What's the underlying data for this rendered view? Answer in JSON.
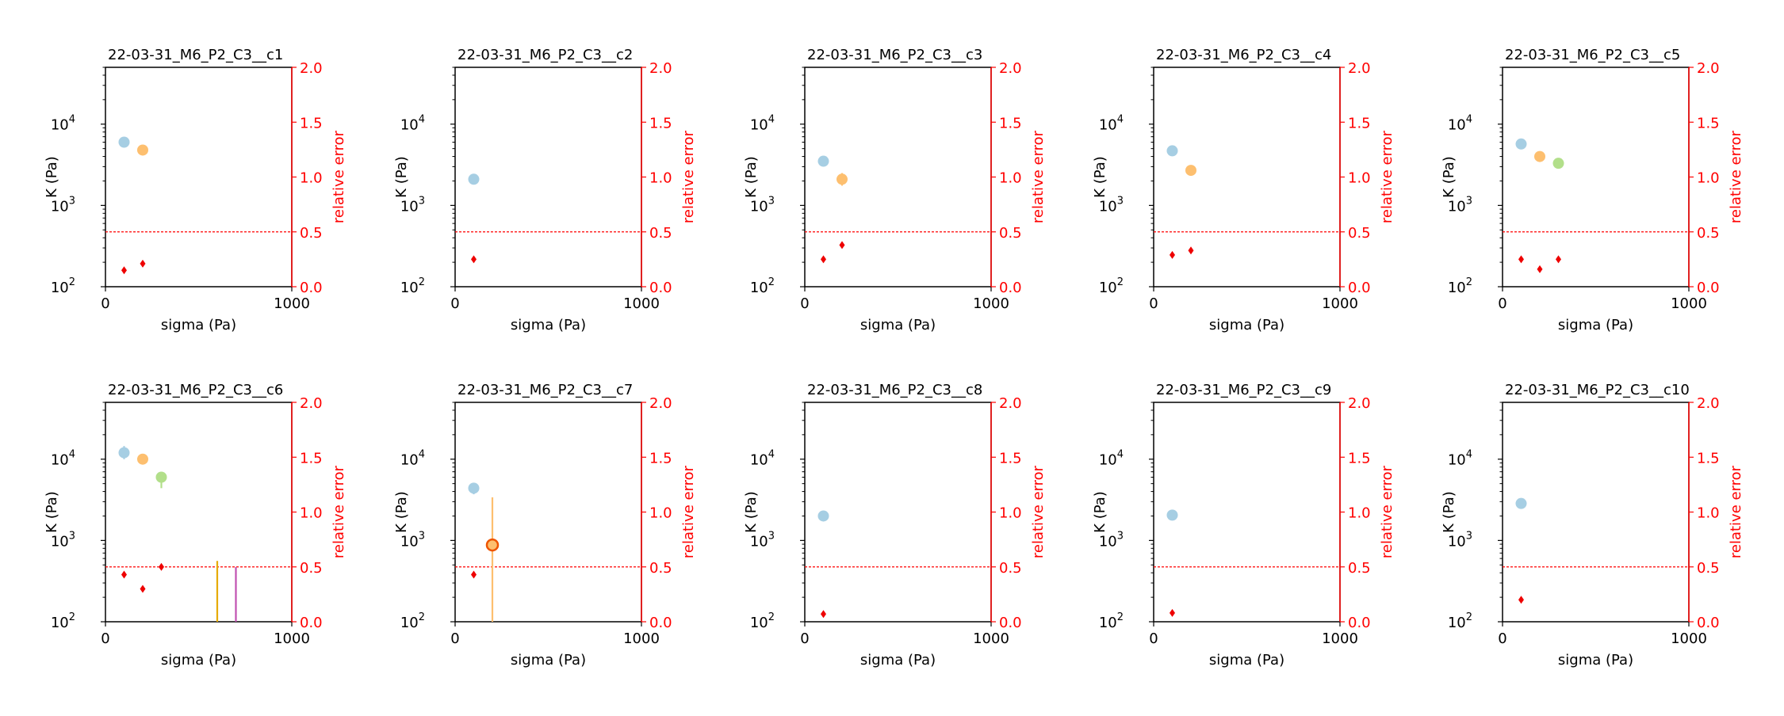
{
  "figure": {
    "colors": {
      "axis": "#000000",
      "secondary_axis": "#ff0000",
      "threshold_line": "#ff0000",
      "error_marker": "#ee0000"
    },
    "series_colors": [
      "#a6cee3",
      "#fdbf6f",
      "#b2df8a",
      "#e6ab02",
      "#c051b0"
    ]
  },
  "chart_data": [
    {
      "type": "scatter",
      "title": "22-03-31_M6_P2_C3__c1",
      "xlabel": "sigma (Pa)",
      "ylabel": "K (Pa)",
      "y2label": "relative error",
      "xlim": [
        0,
        1000
      ],
      "xticks": [
        "0",
        "1000"
      ],
      "ylim": [
        100,
        50000
      ],
      "yscale": "log",
      "yticks": [
        "10",
        "10",
        "10"
      ],
      "ytick_exponents": [
        "2",
        "3",
        "4"
      ],
      "y2lim": [
        0,
        2
      ],
      "y2ticks": [
        "0.0",
        "0.5",
        "1.0",
        "1.5",
        "2.0"
      ],
      "threshold": 0.5,
      "points": [
        {
          "x": 100,
          "y": 6000,
          "color": "#a6cee3"
        },
        {
          "x": 200,
          "y": 4800,
          "color": "#fdbf6f"
        }
      ],
      "relative_error": [
        {
          "x": 100,
          "y": 0.15
        },
        {
          "x": 200,
          "y": 0.21
        }
      ],
      "vlines": []
    },
    {
      "type": "scatter",
      "title": "22-03-31_M6_P2_C3__c2",
      "xlabel": "sigma (Pa)",
      "ylabel": "K (Pa)",
      "y2label": "relative error",
      "xlim": [
        0,
        1000
      ],
      "xticks": [
        "0",
        "1000"
      ],
      "ylim": [
        100,
        50000
      ],
      "yscale": "log",
      "yticks": [
        "10",
        "10",
        "10"
      ],
      "ytick_exponents": [
        "2",
        "3",
        "4"
      ],
      "y2lim": [
        0,
        2
      ],
      "y2ticks": [
        "0.0",
        "0.5",
        "1.0",
        "1.5",
        "2.0"
      ],
      "threshold": 0.5,
      "points": [
        {
          "x": 100,
          "y": 2100,
          "color": "#a6cee3"
        }
      ],
      "relative_error": [
        {
          "x": 100,
          "y": 0.25
        }
      ],
      "vlines": []
    },
    {
      "type": "scatter",
      "title": "22-03-31_M6_P2_C3__c3",
      "xlabel": "sigma (Pa)",
      "ylabel": "K (Pa)",
      "y2label": "relative error",
      "xlim": [
        0,
        1000
      ],
      "xticks": [
        "0",
        "1000"
      ],
      "ylim": [
        100,
        50000
      ],
      "yscale": "log",
      "yticks": [
        "10",
        "10",
        "10"
      ],
      "ytick_exponents": [
        "2",
        "3",
        "4"
      ],
      "y2lim": [
        0,
        2
      ],
      "y2ticks": [
        "0.0",
        "0.5",
        "1.0",
        "1.5",
        "2.0"
      ],
      "threshold": 0.5,
      "points": [
        {
          "x": 100,
          "y": 3500,
          "color": "#a6cee3"
        },
        {
          "x": 200,
          "y": 2100,
          "color": "#fdbf6f",
          "err_low": 1750,
          "err_high": 2500
        }
      ],
      "relative_error": [
        {
          "x": 100,
          "y": 0.25
        },
        {
          "x": 200,
          "y": 0.38
        }
      ],
      "vlines": []
    },
    {
      "type": "scatter",
      "title": "22-03-31_M6_P2_C3__c4",
      "xlabel": "sigma (Pa)",
      "ylabel": "K (Pa)",
      "y2label": "relative error",
      "xlim": [
        0,
        1000
      ],
      "xticks": [
        "0",
        "1000"
      ],
      "ylim": [
        100,
        50000
      ],
      "yscale": "log",
      "yticks": [
        "10",
        "10",
        "10"
      ],
      "ytick_exponents": [
        "2",
        "3",
        "4"
      ],
      "y2lim": [
        0,
        2
      ],
      "y2ticks": [
        "0.0",
        "0.5",
        "1.0",
        "1.5",
        "2.0"
      ],
      "threshold": 0.5,
      "points": [
        {
          "x": 100,
          "y": 4700,
          "color": "#a6cee3"
        },
        {
          "x": 200,
          "y": 2700,
          "color": "#fdbf6f"
        }
      ],
      "relative_error": [
        {
          "x": 100,
          "y": 0.29
        },
        {
          "x": 200,
          "y": 0.33
        }
      ],
      "vlines": []
    },
    {
      "type": "scatter",
      "title": "22-03-31_M6_P2_C3__c5",
      "xlabel": "sigma (Pa)",
      "ylabel": "K (Pa)",
      "y2label": "relative error",
      "xlim": [
        0,
        1000
      ],
      "xticks": [
        "0",
        "1000"
      ],
      "ylim": [
        100,
        50000
      ],
      "yscale": "log",
      "yticks": [
        "10",
        "10",
        "10"
      ],
      "ytick_exponents": [
        "2",
        "3",
        "4"
      ],
      "y2lim": [
        0,
        2
      ],
      "y2ticks": [
        "0.0",
        "0.5",
        "1.0",
        "1.5",
        "2.0"
      ],
      "threshold": 0.5,
      "points": [
        {
          "x": 100,
          "y": 5700,
          "color": "#a6cee3"
        },
        {
          "x": 200,
          "y": 4000,
          "color": "#fdbf6f"
        },
        {
          "x": 300,
          "y": 3300,
          "color": "#b2df8a"
        }
      ],
      "relative_error": [
        {
          "x": 100,
          "y": 0.25
        },
        {
          "x": 200,
          "y": 0.16
        },
        {
          "x": 300,
          "y": 0.25
        }
      ],
      "vlines": []
    },
    {
      "type": "scatter",
      "title": "22-03-31_M6_P2_C3__c6",
      "xlabel": "sigma (Pa)",
      "ylabel": "K (Pa)",
      "y2label": "relative error",
      "xlim": [
        0,
        1000
      ],
      "xticks": [
        "0",
        "1000"
      ],
      "ylim": [
        100,
        50000
      ],
      "yscale": "log",
      "yticks": [
        "10",
        "10",
        "10"
      ],
      "ytick_exponents": [
        "2",
        "3",
        "4"
      ],
      "y2lim": [
        0,
        2
      ],
      "y2ticks": [
        "0.0",
        "0.5",
        "1.0",
        "1.5",
        "2.0"
      ],
      "threshold": 0.5,
      "points": [
        {
          "x": 100,
          "y": 12000,
          "color": "#a6cee3",
          "err_low": 10000,
          "err_high": 14500
        },
        {
          "x": 200,
          "y": 10000,
          "color": "#fdbf6f"
        },
        {
          "x": 300,
          "y": 6000,
          "color": "#b2df8a",
          "err_low": 4400,
          "err_high": 7000
        }
      ],
      "relative_error": [
        {
          "x": 100,
          "y": 0.43
        },
        {
          "x": 200,
          "y": 0.3
        },
        {
          "x": 300,
          "y": 0.5
        }
      ],
      "vlines": [
        {
          "x": 600,
          "y_low": 100,
          "y_high": 560,
          "color": "#e6ab02"
        },
        {
          "x": 700,
          "y_low": 100,
          "y_high": 470,
          "color": "#c051b0"
        }
      ]
    },
    {
      "type": "scatter",
      "title": "22-03-31_M6_P2_C3__c7",
      "xlabel": "sigma (Pa)",
      "ylabel": "K (Pa)",
      "y2label": "relative error",
      "xlim": [
        0,
        1000
      ],
      "xticks": [
        "0",
        "1000"
      ],
      "ylim": [
        100,
        50000
      ],
      "yscale": "log",
      "yticks": [
        "10",
        "10",
        "10"
      ],
      "ytick_exponents": [
        "2",
        "3",
        "4"
      ],
      "y2lim": [
        0,
        2
      ],
      "y2ticks": [
        "0.0",
        "0.5",
        "1.0",
        "1.5",
        "2.0"
      ],
      "threshold": 0.5,
      "points": [
        {
          "x": 100,
          "y": 4400,
          "color": "#a6cee3",
          "err_low": 3700,
          "err_high": 5100
        },
        {
          "x": 200,
          "y": 880,
          "color": "#fdbf6f",
          "edge": "#ee5500",
          "err_low": 100,
          "err_high": 3400
        }
      ],
      "relative_error": [
        {
          "x": 100,
          "y": 0.43
        }
      ],
      "vlines": []
    },
    {
      "type": "scatter",
      "title": "22-03-31_M6_P2_C3__c8",
      "xlabel": "sigma (Pa)",
      "ylabel": "K (Pa)",
      "y2label": "relative error",
      "xlim": [
        0,
        1000
      ],
      "xticks": [
        "0",
        "1000"
      ],
      "ylim": [
        100,
        50000
      ],
      "yscale": "log",
      "yticks": [
        "10",
        "10",
        "10"
      ],
      "ytick_exponents": [
        "2",
        "3",
        "4"
      ],
      "y2lim": [
        0,
        2
      ],
      "y2ticks": [
        "0.0",
        "0.5",
        "1.0",
        "1.5",
        "2.0"
      ],
      "threshold": 0.5,
      "points": [
        {
          "x": 100,
          "y": 2000,
          "color": "#a6cee3"
        }
      ],
      "relative_error": [
        {
          "x": 100,
          "y": 0.07
        }
      ],
      "vlines": []
    },
    {
      "type": "scatter",
      "title": "22-03-31_M6_P2_C3__c9",
      "xlabel": "sigma (Pa)",
      "ylabel": "K (Pa)",
      "y2label": "relative error",
      "xlim": [
        0,
        1000
      ],
      "xticks": [
        "0",
        "1000"
      ],
      "ylim": [
        100,
        50000
      ],
      "yscale": "log",
      "yticks": [
        "10",
        "10",
        "10"
      ],
      "ytick_exponents": [
        "2",
        "3",
        "4"
      ],
      "y2lim": [
        0,
        2
      ],
      "y2ticks": [
        "0.0",
        "0.5",
        "1.0",
        "1.5",
        "2.0"
      ],
      "threshold": 0.5,
      "points": [
        {
          "x": 100,
          "y": 2050,
          "color": "#a6cee3"
        }
      ],
      "relative_error": [
        {
          "x": 100,
          "y": 0.08
        }
      ],
      "vlines": []
    },
    {
      "type": "scatter",
      "title": "22-03-31_M6_P2_C3__c10",
      "xlabel": "sigma (Pa)",
      "ylabel": "K (Pa)",
      "y2label": "relative error",
      "xlim": [
        0,
        1000
      ],
      "xticks": [
        "0",
        "1000"
      ],
      "ylim": [
        100,
        50000
      ],
      "yscale": "log",
      "yticks": [
        "10",
        "10",
        "10"
      ],
      "ytick_exponents": [
        "2",
        "3",
        "4"
      ],
      "y2lim": [
        0,
        2
      ],
      "y2ticks": [
        "0.0",
        "0.5",
        "1.0",
        "1.5",
        "2.0"
      ],
      "threshold": 0.5,
      "points": [
        {
          "x": 100,
          "y": 2850,
          "color": "#a6cee3"
        }
      ],
      "relative_error": [
        {
          "x": 100,
          "y": 0.2
        }
      ],
      "vlines": []
    }
  ]
}
